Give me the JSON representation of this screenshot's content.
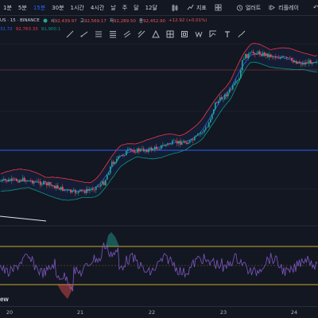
{
  "toolbar": {
    "timeframes": [
      {
        "label": "1분",
        "active": false
      },
      {
        "label": "5분",
        "active": false
      },
      {
        "label": "15분",
        "active": true
      },
      {
        "label": "30분",
        "active": false
      },
      {
        "label": "1시간",
        "active": false
      },
      {
        "label": "4시간",
        "active": false
      },
      {
        "label": "날",
        "active": false
      },
      {
        "label": "주",
        "active": false
      },
      {
        "label": "달",
        "active": false
      },
      {
        "label": "12달",
        "active": false
      }
    ],
    "indicators_label": "지표",
    "alert_label": "얼러트",
    "replay_label": "리플레이",
    "undo_icon": "undo-icon",
    "redo_icon": "redo-icon"
  },
  "symbol": {
    "name": "US · 15 · BINANCE",
    "open_label": "시",
    "open": "92,439.97",
    "high_label": "고",
    "high": "92,569.17",
    "low_label": "저",
    "low": "92,289.50",
    "close_label": "종",
    "close": "92,452.90",
    "change": "+12.92 (+0.01%)"
  },
  "bollinger": {
    "v1": "31.72",
    "v2": "92,763.33",
    "v3": "91,900.1"
  },
  "x_axis_labels": [
    "20",
    "21",
    "22",
    "23",
    "24"
  ],
  "logo_text": "ew",
  "colors": {
    "background": "#131722",
    "up": "#26a69a",
    "down": "#ef5350",
    "bb_basis": "#2962ff",
    "bb_upper": "#f23645",
    "bb_lower": "#089981",
    "rsi": "#7e57c2",
    "hline_blue": "#2962ff",
    "hline_yellow": "#c8a82c"
  }
}
